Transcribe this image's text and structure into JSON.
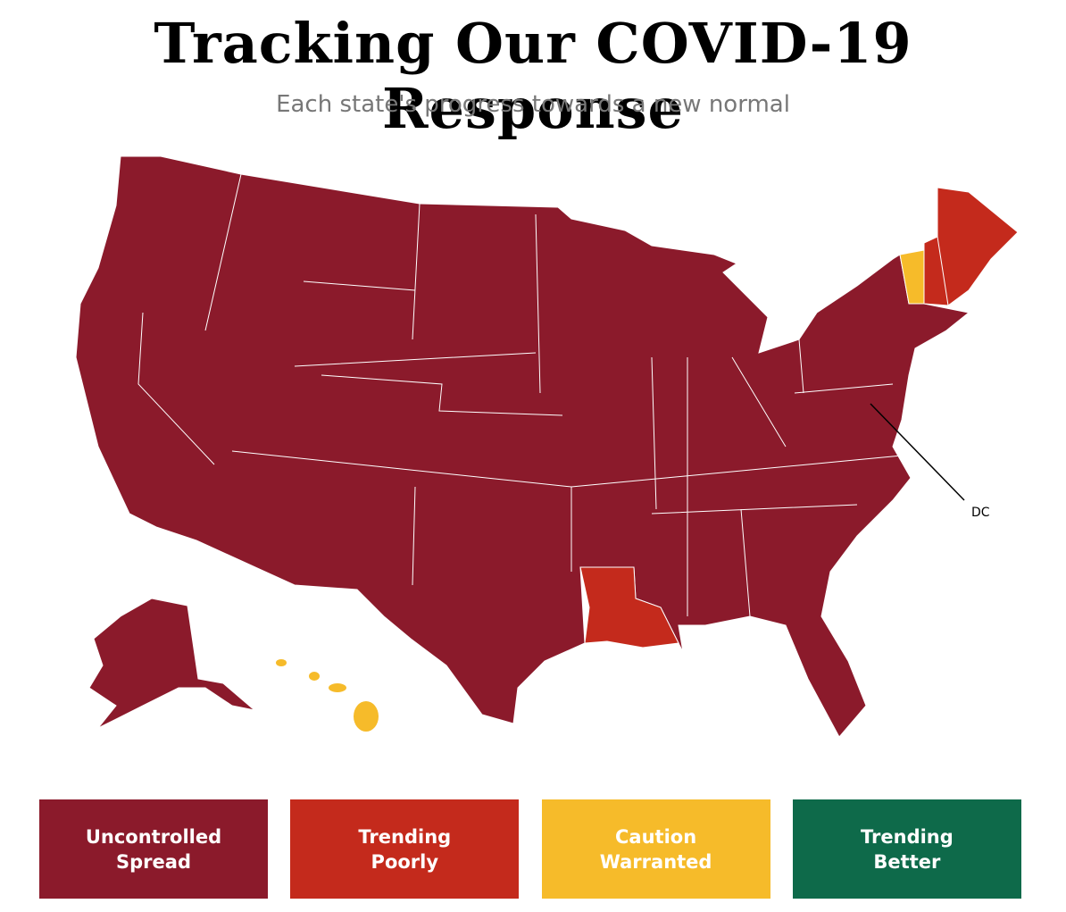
{
  "header": {
    "title": "Tracking Our COVID-19 Response",
    "subtitle": "Each state's progress towards a new normal"
  },
  "map": {
    "labels": [
      "DC"
    ]
  },
  "legend": [
    {
      "label": "Uncontrolled Spread",
      "color": "#8b1a2b"
    },
    {
      "label": "Trending Poorly",
      "color": "#c42a1c"
    },
    {
      "label": "Caution Warranted",
      "color": "#f6bb2a"
    },
    {
      "label": "Trending Better",
      "color": "#0e6a4a"
    }
  ]
}
